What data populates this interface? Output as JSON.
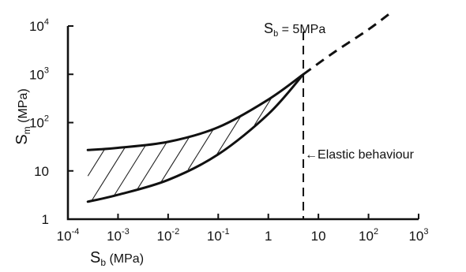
{
  "chart_data": {
    "type": "area",
    "x_scale": "log",
    "y_scale": "log",
    "xlim": [
      0.0001,
      1000
    ],
    "ylim": [
      1,
      10000
    ],
    "x_ticks": [
      {
        "base": "10",
        "exp": "-4",
        "value": 0.0001
      },
      {
        "base": "10",
        "exp": "-3",
        "value": 0.001
      },
      {
        "base": "10",
        "exp": "-2",
        "value": 0.01
      },
      {
        "base": "10",
        "exp": "-1",
        "value": 0.1
      },
      {
        "base": "1",
        "exp": "",
        "value": 1
      },
      {
        "base": "10",
        "exp": "",
        "value": 10
      },
      {
        "base": "10",
        "exp": "2",
        "value": 100
      },
      {
        "base": "10",
        "exp": "3",
        "value": 1000
      }
    ],
    "y_ticks": [
      {
        "base": "1",
        "exp": "",
        "value": 1
      },
      {
        "base": "10",
        "exp": "",
        "value": 10
      },
      {
        "base": "10",
        "exp": "2",
        "value": 100
      },
      {
        "base": "10",
        "exp": "3",
        "value": 1000
      },
      {
        "base": "10",
        "exp": "4",
        "value": 10000
      }
    ],
    "xlabel": {
      "main": "S",
      "sub": "b",
      "unit": "(MPa)"
    },
    "ylabel": {
      "main": "S",
      "sub": "m",
      "unit": "(MPa)"
    },
    "series": [
      {
        "role": "upper-bound",
        "style": "solid",
        "points": [
          [
            0.00025,
            27
          ],
          [
            0.001,
            30
          ],
          [
            0.01,
            40
          ],
          [
            0.1,
            80
          ],
          [
            1,
            300
          ],
          [
            5,
            1000
          ]
        ]
      },
      {
        "role": "lower-bound",
        "style": "solid",
        "points": [
          [
            0.00025,
            2.3
          ],
          [
            0.001,
            3.2
          ],
          [
            0.01,
            6.5
          ],
          [
            0.1,
            22
          ],
          [
            1,
            150
          ],
          [
            5,
            1000
          ]
        ]
      },
      {
        "role": "extrapolation",
        "style": "dashed",
        "points": [
          [
            5,
            1000
          ],
          [
            20,
            2800
          ],
          [
            100,
            8500
          ],
          [
            300,
            20000
          ]
        ]
      }
    ],
    "band_fill": "hatched",
    "vertical_marker": {
      "x": 5,
      "style": "dashed",
      "label": {
        "main": "S",
        "sub": "b",
        "text": " = 5MPa"
      }
    },
    "annotation": {
      "arrow": "←",
      "text": "Elastic behaviour",
      "y": 22
    },
    "grid": false,
    "legend": "none"
  }
}
